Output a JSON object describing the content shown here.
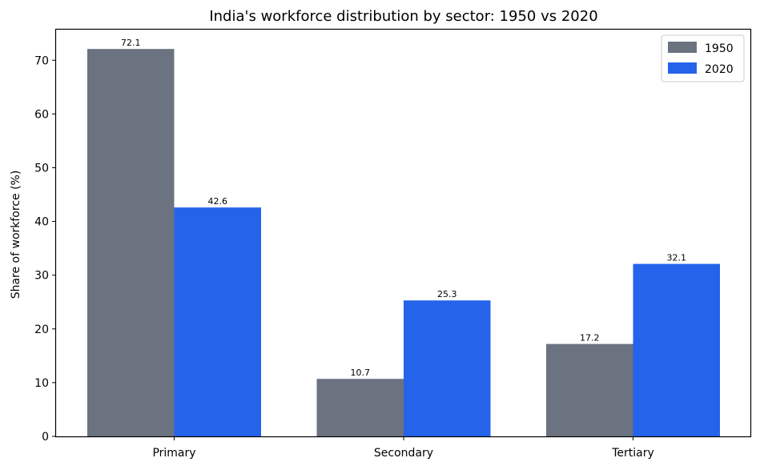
{
  "chart_data": {
    "type": "bar",
    "title": "India's workforce distribution by sector: 1950 vs 2020",
    "xlabel": "",
    "ylabel": "Share of workforce (%)",
    "categories": [
      "Primary",
      "Secondary",
      "Tertiary"
    ],
    "series": [
      {
        "name": "1950",
        "values": [
          72.1,
          10.7,
          17.2
        ],
        "color": "#6b7280"
      },
      {
        "name": "2020",
        "values": [
          42.6,
          25.3,
          32.1
        ],
        "color": "#2563eb"
      }
    ],
    "ylim": [
      0,
      75.7
    ],
    "yticks": [
      0,
      10,
      20,
      30,
      40,
      50,
      60,
      70
    ],
    "grid": false,
    "legend": "top-right"
  }
}
